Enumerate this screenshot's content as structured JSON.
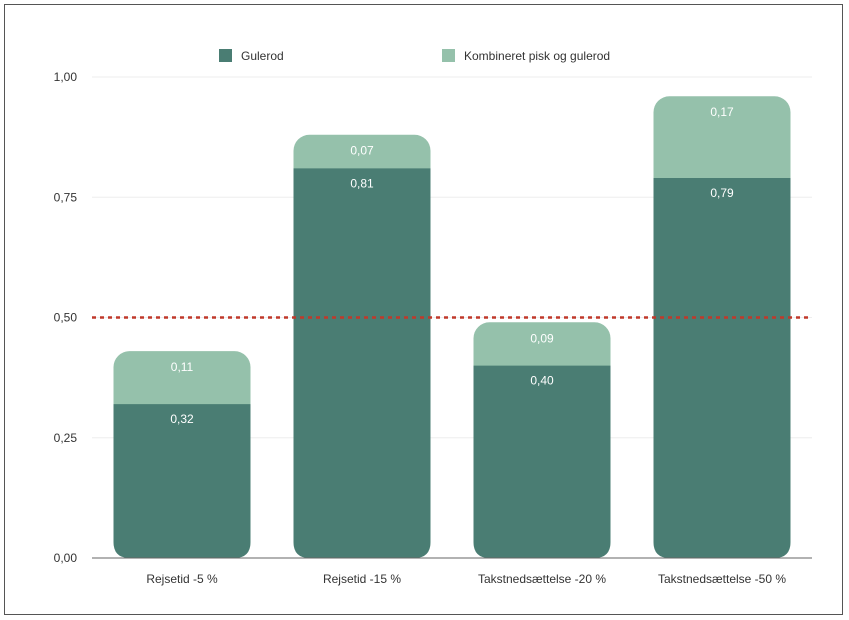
{
  "chart_data": {
    "type": "bar",
    "stacked": true,
    "categories": [
      "Rejsetid -5 %",
      "Rejsetid -15 %",
      "Takstnedsættelse -20 %",
      "Takstnedsættelse -50 %"
    ],
    "series": [
      {
        "name": "Gulerod",
        "color": "#4a7d73",
        "values": [
          0.32,
          0.81,
          0.4,
          0.79
        ],
        "labels": [
          "0,32",
          "0,81",
          "0,40",
          "0,79"
        ]
      },
      {
        "name": "Kombineret pisk og gulerod",
        "color": "#95c1ab",
        "values": [
          0.11,
          0.07,
          0.09,
          0.17
        ],
        "labels": [
          "0,11",
          "0,07",
          "0,09",
          "0,17"
        ]
      }
    ],
    "y_ticks": [
      {
        "value": 0.0,
        "label": "0,00"
      },
      {
        "value": 0.25,
        "label": "0,25"
      },
      {
        "value": 0.5,
        "label": "0,50"
      },
      {
        "value": 0.75,
        "label": "0,75"
      },
      {
        "value": 1.0,
        "label": "1,00"
      }
    ],
    "ylim": [
      0,
      1.0
    ],
    "reference_line": {
      "value": 0.5,
      "color": "#c0392b",
      "style": "dotted"
    },
    "legend_position": "top-center",
    "grid": true
  }
}
